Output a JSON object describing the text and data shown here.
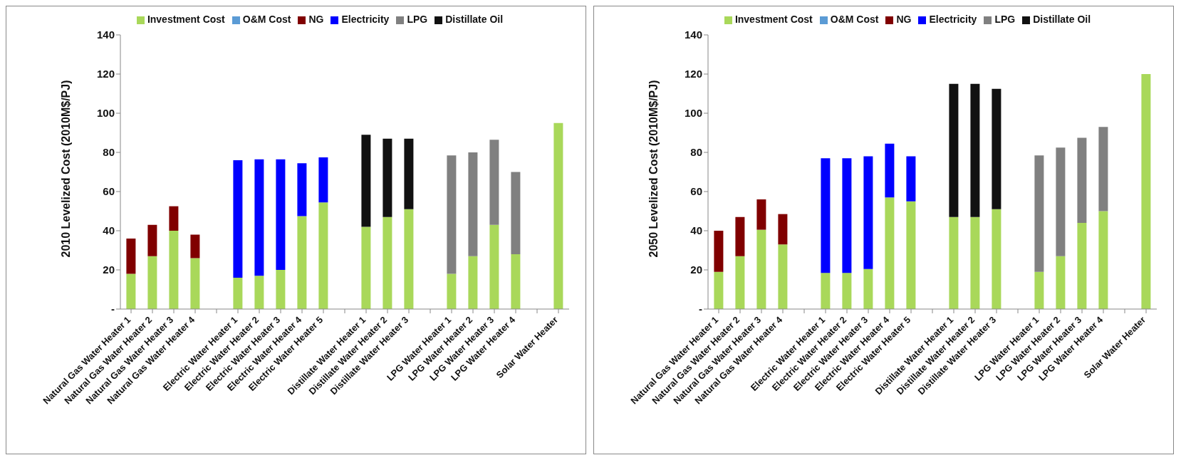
{
  "chart_data": [
    {
      "type": "bar",
      "stacked": true,
      "ylabel": "2010 Levelized Cost (2010M$/PJ)",
      "legend": "top",
      "grid": false,
      "categories": [
        "Natural Gas Water Heater 1",
        "Natural Gas Water Heater 2",
        "Natural Gas Water Heater 3",
        "Natural Gas Water Heater 4",
        null,
        "Electric Water Heater 1",
        "Electric Water Heater 2",
        "Electric Water Heater 3",
        "Electric Water Heater 4",
        "Electric Water Heater 5",
        null,
        "Distillate Water Heater 1",
        "Distillate Water Heater 2",
        "Distillate Water Heater 3",
        null,
        "LPG Water Heater 1",
        "LPG Water Heater 2",
        "LPG Water Heater 3",
        "LPG Water Heater 4",
        null,
        "Solar Water Heater"
      ],
      "ylim": [
        0,
        140
      ],
      "yticks": [
        {
          "value": 0,
          "label": "-"
        },
        20,
        40,
        60,
        80,
        100,
        120,
        140
      ],
      "series": [
        {
          "name": "Investment Cost",
          "color": "#a9d85a",
          "values": [
            18,
            27,
            40,
            26,
            null,
            16,
            17,
            20,
            47.5,
            54.5,
            null,
            42,
            47,
            51,
            null,
            18,
            27,
            43,
            28,
            null,
            95
          ]
        },
        {
          "name": "O&M Cost",
          "color": "#5b9bd5",
          "values": [
            null,
            null,
            null,
            null,
            null,
            null,
            null,
            null,
            null,
            null,
            null,
            null,
            null,
            null,
            null,
            null,
            null,
            null,
            null,
            null,
            null
          ]
        },
        {
          "name": "NG",
          "color": "#800000",
          "values": [
            18,
            16,
            12.5,
            12,
            null,
            null,
            null,
            null,
            null,
            null,
            null,
            null,
            null,
            null,
            null,
            null,
            null,
            null,
            null,
            null,
            null
          ]
        },
        {
          "name": "Electricity",
          "color": "#0000ff",
          "values": [
            null,
            null,
            null,
            null,
            null,
            60,
            59.5,
            56.5,
            27,
            23,
            null,
            null,
            null,
            null,
            null,
            null,
            null,
            null,
            null,
            null,
            null
          ]
        },
        {
          "name": "LPG",
          "color": "#808080",
          "values": [
            null,
            null,
            null,
            null,
            null,
            null,
            null,
            null,
            null,
            null,
            null,
            null,
            null,
            null,
            null,
            60.5,
            53,
            43.5,
            42,
            null,
            null
          ]
        },
        {
          "name": "Distillate Oil",
          "color": "#111111",
          "values": [
            null,
            null,
            null,
            null,
            null,
            null,
            null,
            null,
            null,
            null,
            null,
            47,
            40,
            36,
            null,
            null,
            null,
            null,
            null,
            null,
            null
          ]
        }
      ]
    },
    {
      "type": "bar",
      "stacked": true,
      "ylabel": "2050 Levelized Cost (2010M$/PJ)",
      "legend": "top",
      "grid": false,
      "categories": [
        "Natural Gas Water Heater 1",
        "Natural Gas Water Heater 2",
        "Natural Gas Water Heater 3",
        "Natural Gas Water Heater 4",
        null,
        "Electric Water Heater 1",
        "Electric Water Heater 2",
        "Electric Water Heater 3",
        "Electric Water Heater 4",
        "Electric Water Heater 5",
        null,
        "Distillate Water Heater 1",
        "Distillate Water Heater 2",
        "Distillate Water Heater 3",
        null,
        "LPG Water Heater 1",
        "LPG Water Heater 2",
        "LPG Water Heater 3",
        "LPG Water Heater 4",
        null,
        "Solar Water Heater"
      ],
      "ylim": [
        0,
        140
      ],
      "yticks": [
        {
          "value": 0,
          "label": "-"
        },
        20,
        40,
        60,
        80,
        100,
        120,
        140
      ],
      "series": [
        {
          "name": "Investment Cost",
          "color": "#a9d85a",
          "values": [
            19,
            27,
            40.5,
            33,
            null,
            18.5,
            18.5,
            20.5,
            57,
            55,
            null,
            47,
            47,
            51,
            null,
            19,
            27,
            44,
            50,
            null,
            120
          ]
        },
        {
          "name": "O&M Cost",
          "color": "#5b9bd5",
          "values": [
            null,
            null,
            null,
            null,
            null,
            null,
            null,
            null,
            null,
            null,
            null,
            null,
            null,
            null,
            null,
            null,
            null,
            null,
            null,
            null,
            null
          ]
        },
        {
          "name": "NG",
          "color": "#800000",
          "values": [
            21,
            20,
            15.5,
            15.5,
            null,
            null,
            null,
            null,
            null,
            null,
            null,
            null,
            null,
            null,
            null,
            null,
            null,
            null,
            null,
            null,
            null
          ]
        },
        {
          "name": "Electricity",
          "color": "#0000ff",
          "values": [
            null,
            null,
            null,
            null,
            null,
            58.5,
            58.5,
            57.5,
            27.5,
            23,
            null,
            null,
            null,
            null,
            null,
            null,
            null,
            null,
            null,
            null,
            null
          ]
        },
        {
          "name": "LPG",
          "color": "#808080",
          "values": [
            null,
            null,
            null,
            null,
            null,
            null,
            null,
            null,
            null,
            null,
            null,
            null,
            null,
            null,
            null,
            59.5,
            55.5,
            43.5,
            43,
            null,
            null
          ]
        },
        {
          "name": "Distillate Oil",
          "color": "#111111",
          "values": [
            null,
            null,
            null,
            null,
            null,
            null,
            null,
            null,
            null,
            null,
            null,
            68,
            68,
            61.5,
            null,
            null,
            null,
            null,
            null,
            null,
            null
          ]
        }
      ]
    }
  ]
}
